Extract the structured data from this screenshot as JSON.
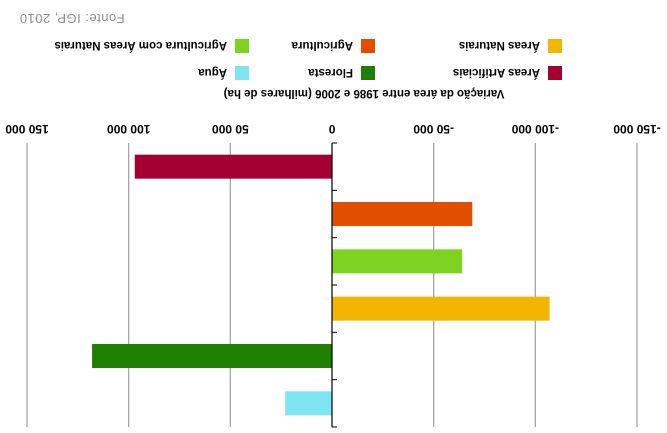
{
  "chart_data": {
    "type": "bar",
    "orientation": "horizontal",
    "rendering": "rotated-180",
    "categories": [
      "Áreas Artificiais",
      "Agricultura",
      "Agricultura com Áreas Naturais",
      "Áreas Naturais",
      "Floresta",
      "Água"
    ],
    "values": [
      97000,
      -69000,
      -64000,
      -107000,
      118000,
      23000
    ],
    "colors": [
      "#a50034",
      "#e24e00",
      "#7ed321",
      "#f2b600",
      "#1f7f00",
      "#80e5f2"
    ],
    "xlabel": "Variação da área entre 1986 e 2006 (milhares de ha)",
    "xlim": [
      -150000,
      150000
    ],
    "xticks": [
      -150000,
      -100000,
      -50000,
      0,
      50000,
      100000,
      150000
    ],
    "xtick_labels": [
      "-150 000",
      "-100 000",
      "-50 000",
      "0",
      "50 000",
      "100 000",
      "150 000"
    ],
    "grid": "vertical",
    "legend": {
      "placement": "top",
      "columns": 3,
      "entries": [
        "Áreas Artificiais",
        "Floresta",
        "Água",
        "Áreas Naturais",
        "Agricultura",
        "Agricultura com Áreas Naturais"
      ]
    },
    "source": "Fonte: IGP, 2010"
  },
  "colors": {
    "grid": "#a6a6a6",
    "axis": "#000000"
  }
}
